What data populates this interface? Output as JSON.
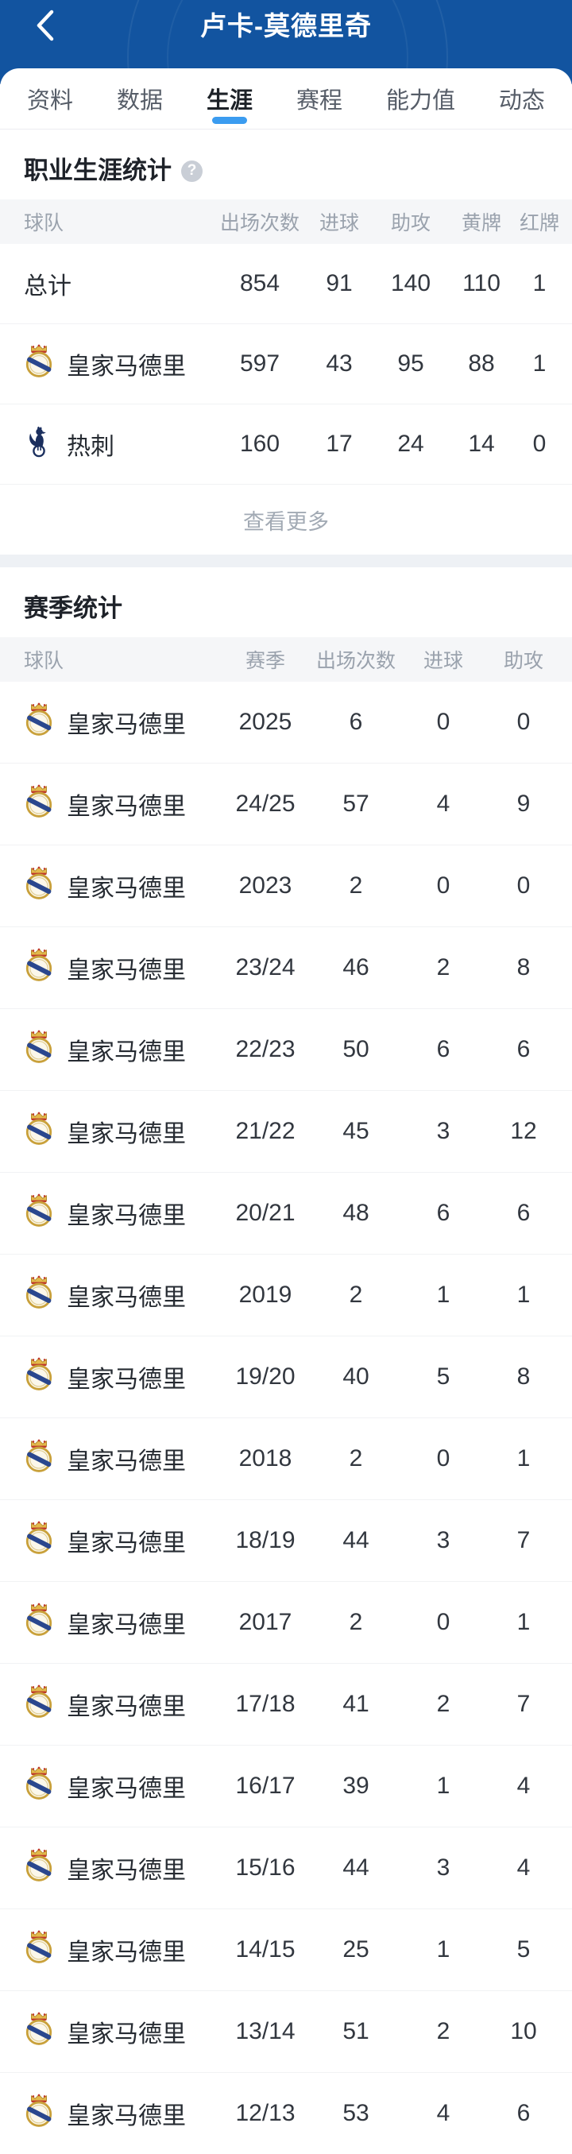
{
  "header": {
    "title": "卢卡-莫德里奇"
  },
  "tabs": [
    {
      "id": "profile",
      "label": "资料",
      "active": false
    },
    {
      "id": "data",
      "label": "数据",
      "active": false
    },
    {
      "id": "career",
      "label": "生涯",
      "active": true
    },
    {
      "id": "schedule",
      "label": "赛程",
      "active": false
    },
    {
      "id": "rating",
      "label": "能力值",
      "active": false
    },
    {
      "id": "news",
      "label": "动态",
      "active": false
    }
  ],
  "career": {
    "title": "职业生涯统计",
    "help_icon": "question-mark-icon",
    "columns": [
      "球队",
      "出场次数",
      "进球",
      "助攻",
      "黄牌",
      "红牌"
    ],
    "rows": [
      {
        "team": "总计",
        "logo": null,
        "appearances": "854",
        "goals": "91",
        "assists": "140",
        "yellow": "110",
        "red": "1"
      },
      {
        "team": "皇家马德里",
        "logo": "real-madrid-crest-icon",
        "appearances": "597",
        "goals": "43",
        "assists": "95",
        "yellow": "88",
        "red": "1"
      },
      {
        "team": "热刺",
        "logo": "tottenham-crest-icon",
        "appearances": "160",
        "goals": "17",
        "assists": "24",
        "yellow": "14",
        "red": "0"
      }
    ],
    "view_more": "查看更多"
  },
  "season": {
    "title": "赛季统计",
    "columns": [
      "球队",
      "赛季",
      "出场次数",
      "进球",
      "助攻"
    ],
    "rows": [
      {
        "team": "皇家马德里",
        "logo": "real-madrid-crest-icon",
        "season": "2025",
        "appearances": "6",
        "goals": "0",
        "assists": "0"
      },
      {
        "team": "皇家马德里",
        "logo": "real-madrid-crest-icon",
        "season": "24/25",
        "appearances": "57",
        "goals": "4",
        "assists": "9"
      },
      {
        "team": "皇家马德里",
        "logo": "real-madrid-crest-icon",
        "season": "2023",
        "appearances": "2",
        "goals": "0",
        "assists": "0"
      },
      {
        "team": "皇家马德里",
        "logo": "real-madrid-crest-icon",
        "season": "23/24",
        "appearances": "46",
        "goals": "2",
        "assists": "8"
      },
      {
        "team": "皇家马德里",
        "logo": "real-madrid-crest-icon",
        "season": "22/23",
        "appearances": "50",
        "goals": "6",
        "assists": "6"
      },
      {
        "team": "皇家马德里",
        "logo": "real-madrid-crest-icon",
        "season": "21/22",
        "appearances": "45",
        "goals": "3",
        "assists": "12"
      },
      {
        "team": "皇家马德里",
        "logo": "real-madrid-crest-icon",
        "season": "20/21",
        "appearances": "48",
        "goals": "6",
        "assists": "6"
      },
      {
        "team": "皇家马德里",
        "logo": "real-madrid-crest-icon",
        "season": "2019",
        "appearances": "2",
        "goals": "1",
        "assists": "1"
      },
      {
        "team": "皇家马德里",
        "logo": "real-madrid-crest-icon",
        "season": "19/20",
        "appearances": "40",
        "goals": "5",
        "assists": "8"
      },
      {
        "team": "皇家马德里",
        "logo": "real-madrid-crest-icon",
        "season": "2018",
        "appearances": "2",
        "goals": "0",
        "assists": "1"
      },
      {
        "team": "皇家马德里",
        "logo": "real-madrid-crest-icon",
        "season": "18/19",
        "appearances": "44",
        "goals": "3",
        "assists": "7"
      },
      {
        "team": "皇家马德里",
        "logo": "real-madrid-crest-icon",
        "season": "2017",
        "appearances": "2",
        "goals": "0",
        "assists": "1"
      },
      {
        "team": "皇家马德里",
        "logo": "real-madrid-crest-icon",
        "season": "17/18",
        "appearances": "41",
        "goals": "2",
        "assists": "7"
      },
      {
        "team": "皇家马德里",
        "logo": "real-madrid-crest-icon",
        "season": "16/17",
        "appearances": "39",
        "goals": "1",
        "assists": "4"
      },
      {
        "team": "皇家马德里",
        "logo": "real-madrid-crest-icon",
        "season": "15/16",
        "appearances": "44",
        "goals": "3",
        "assists": "4"
      },
      {
        "team": "皇家马德里",
        "logo": "real-madrid-crest-icon",
        "season": "14/15",
        "appearances": "25",
        "goals": "1",
        "assists": "5"
      },
      {
        "team": "皇家马德里",
        "logo": "real-madrid-crest-icon",
        "season": "13/14",
        "appearances": "51",
        "goals": "2",
        "assists": "10"
      },
      {
        "team": "皇家马德里",
        "logo": "real-madrid-crest-icon",
        "season": "12/13",
        "appearances": "53",
        "goals": "4",
        "assists": "6"
      }
    ]
  },
  "colors": {
    "header_blue": "#1254a0",
    "accent_blue": "#3b9cf0",
    "muted_text": "#9aa2ad",
    "rm_gold": "#c9a13b",
    "spurs_navy": "#1b2f5e"
  }
}
